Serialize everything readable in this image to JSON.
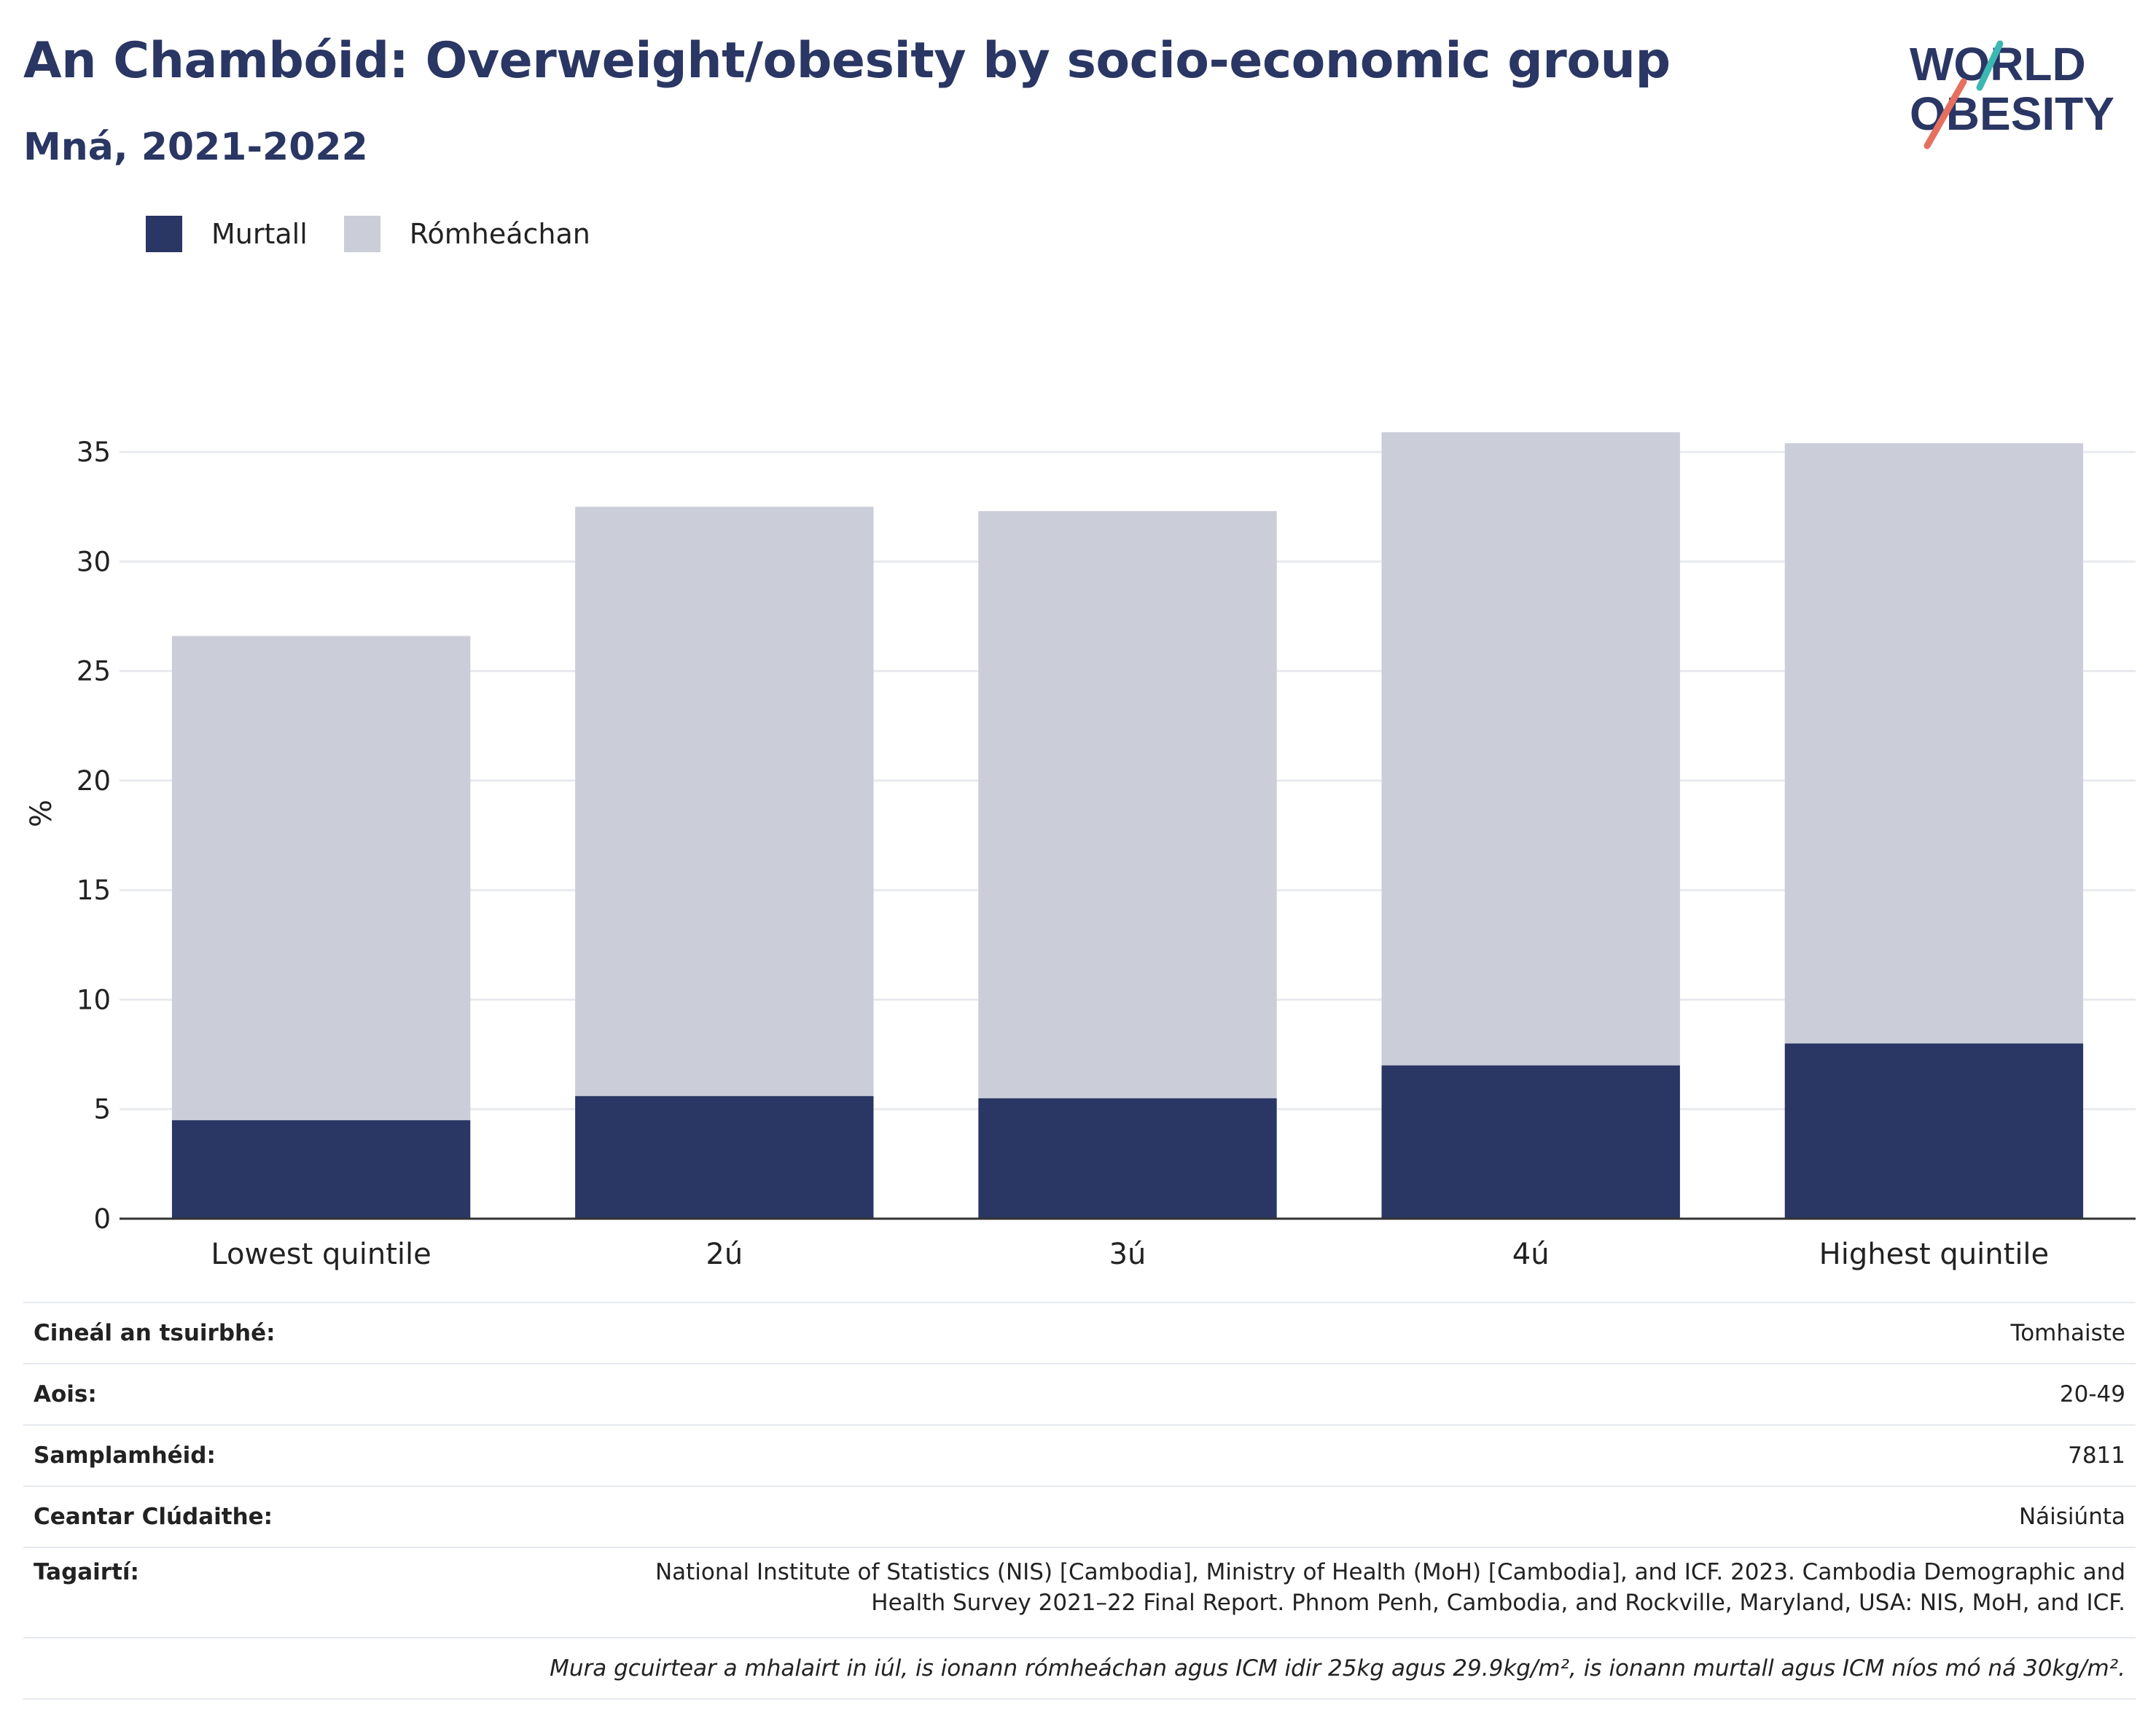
{
  "title": "An Chambóid: Overweight/obesity by socio-economic group",
  "subtitle": "Mná, 2021-2022",
  "logo": {
    "line1": "WORLD",
    "line2": "OBESITY"
  },
  "legend": [
    {
      "label": "Murtall",
      "color": "#2a3663"
    },
    {
      "label": "Rómheáchan",
      "color": "#cbcdd8"
    }
  ],
  "chart_data": {
    "type": "bar",
    "stacked": true,
    "categories": [
      "Lowest quintile",
      "2ú",
      "3ú",
      "4ú",
      "Highest quintile"
    ],
    "series": [
      {
        "name": "Murtall",
        "color": "#2a3663",
        "values": [
          4.5,
          5.6,
          5.5,
          7.0,
          8.0
        ]
      },
      {
        "name": "Rómheáchan",
        "color": "#cbcdd8",
        "values": [
          22.1,
          26.9,
          26.8,
          28.9,
          27.4
        ]
      }
    ],
    "ylabel": "%",
    "ylim": [
      0,
      37
    ],
    "yticks": [
      0,
      5,
      10,
      15,
      20,
      25,
      30,
      35
    ],
    "grid": true,
    "legend_position": "top-left"
  },
  "info": [
    {
      "key": "Cineál an tsuirbhé:",
      "value": "Tomhaiste"
    },
    {
      "key": "Aois:",
      "value": "20-49"
    },
    {
      "key": "Samplamhéid:",
      "value": "7811"
    },
    {
      "key": "Ceantar Clúdaithe:",
      "value": "Náisiúnta"
    },
    {
      "key": "Tagairtí:",
      "value_lines": [
        "National Institute of Statistics (NIS) [Cambodia], Ministry of Health (MoH) [Cambodia], and ICF. 2023. Cambodia Demographic and",
        "Health Survey 2021–22 Final Report. Phnom Penh, Cambodia, and Rockville, Maryland, USA: NIS, MoH, and ICF."
      ]
    }
  ],
  "note": "Mura gcuirtear a mhalairt in iúl, is ionann rómheáchan agus ICM idir 25kg agus 29.9kg/m², is ionann murtall agus ICM níos mó ná 30kg/m²."
}
